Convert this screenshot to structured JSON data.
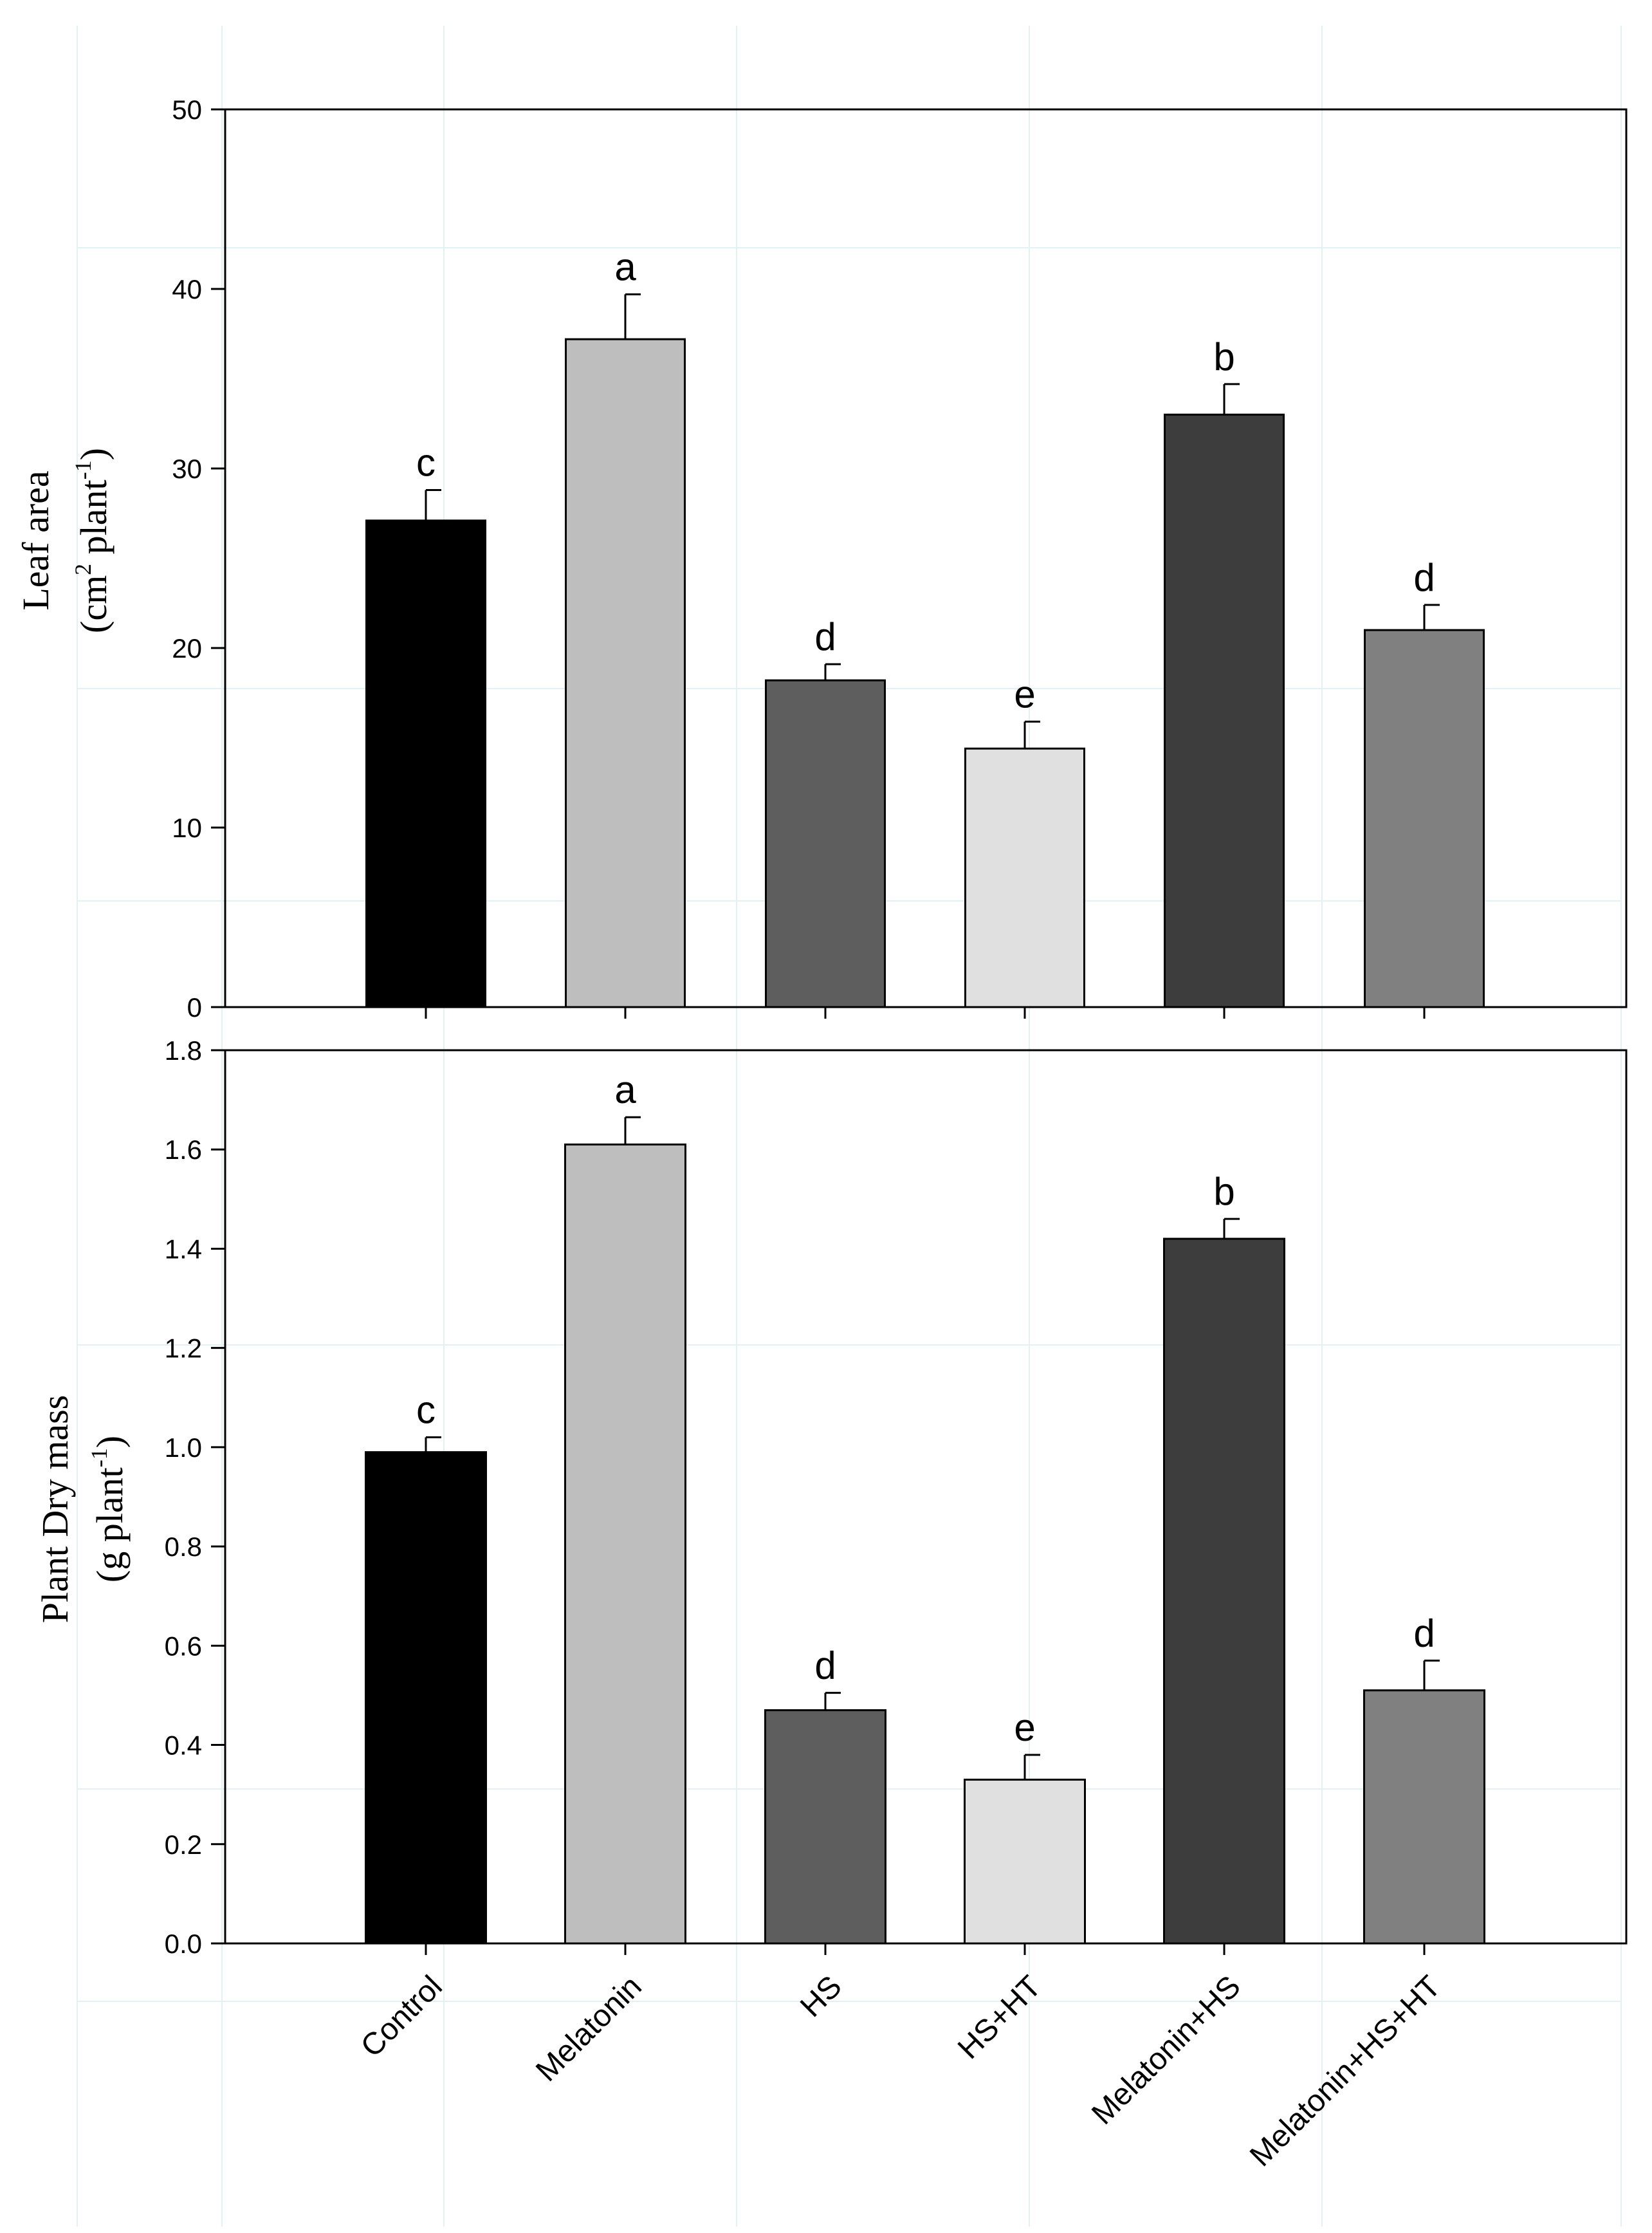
{
  "chart_data": [
    {
      "type": "bar",
      "id": "leaf-area",
      "title": "",
      "ylabel_line1": "Leaf area",
      "ylabel_line2_main": "(cm",
      "ylabel_line2_sup1": "2",
      "ylabel_line2_mid": " plant",
      "ylabel_line2_sup2": "-1",
      "ylabel_line2_end": ")",
      "xlabel": "",
      "categories": [
        "Control",
        "Melatonin",
        "HS",
        "HS+HT",
        "Melatonin+HS",
        "Melatonin+HS+HT"
      ],
      "values": [
        27.1,
        37.2,
        18.2,
        14.4,
        33.0,
        21.0
      ],
      "errors": [
        1.7,
        2.5,
        0.9,
        1.5,
        1.7,
        1.4
      ],
      "letters": [
        "c",
        "a",
        "d",
        "e",
        "b",
        "d"
      ],
      "colors": [
        "#000000",
        "#bebebe",
        "#5e5e5e",
        "#e0e0e0",
        "#3d3d3d",
        "#808080"
      ],
      "ylim": [
        0,
        50
      ],
      "yticks": [
        0,
        10,
        20,
        30,
        40,
        50
      ],
      "ytick_labels": [
        "0",
        "10",
        "20",
        "30",
        "40",
        "50"
      ],
      "grid": false
    },
    {
      "type": "bar",
      "id": "plant-dry-mass",
      "title": "",
      "ylabel_line1": "Plant Dry mass",
      "ylabel_line2_main": "(g plant",
      "ylabel_line2_sup2": "-1",
      "ylabel_line2_end": ")",
      "xlabel": "",
      "categories": [
        "Control",
        "Melatonin",
        "HS",
        "HS+HT",
        "Melatonin+HS",
        "Melatonin+HS+HT"
      ],
      "values": [
        0.99,
        1.61,
        0.47,
        0.33,
        1.42,
        0.51
      ],
      "errors": [
        0.03,
        0.055,
        0.035,
        0.05,
        0.04,
        0.06
      ],
      "letters": [
        "c",
        "a",
        "d",
        "e",
        "b",
        "d"
      ],
      "colors": [
        "#000000",
        "#bebebe",
        "#5e5e5e",
        "#e0e0e0",
        "#3d3d3d",
        "#808080"
      ],
      "ylim": [
        0,
        1.8
      ],
      "yticks": [
        0,
        0.2,
        0.4,
        0.6,
        0.8,
        1.0,
        1.2,
        1.4,
        1.6,
        1.8
      ],
      "ytick_labels": [
        "0.0",
        "0.2",
        "0.4",
        "0.6",
        "0.8",
        "1.0",
        "1.2",
        "1.4",
        "1.6",
        "1.8"
      ],
      "grid": false
    }
  ]
}
